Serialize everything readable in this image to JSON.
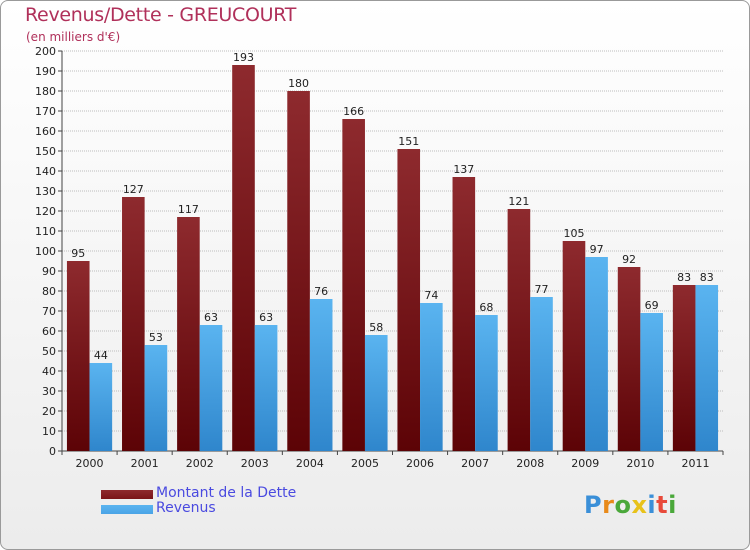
{
  "header": {
    "title": "Revenus/Dette - GREUCOURT",
    "subtitle": "(en milliers d'€)"
  },
  "legend": {
    "debt_label": "Montant de la Dette",
    "revenue_label": "Revenus"
  },
  "logo": {
    "letters": [
      "P",
      "r",
      "o",
      "x",
      "i",
      "t",
      "i"
    ],
    "colors": [
      "#3a8fd8",
      "#e88a1a",
      "#4aa83a",
      "#e8c21a",
      "#3a8fd8",
      "#e84a3a",
      "#4aa83a"
    ]
  },
  "colors": {
    "debt": "#7a1418",
    "revenue": "#4aa3e6",
    "grid": "#bdbdbd"
  },
  "chart_data": {
    "type": "bar",
    "title": "Revenus/Dette - GREUCOURT",
    "ylabel": "(en milliers d'€)",
    "xlabel": "",
    "categories": [
      "2000",
      "2001",
      "2002",
      "2003",
      "2004",
      "2005",
      "2006",
      "2007",
      "2008",
      "2009",
      "2010",
      "2011"
    ],
    "series": [
      {
        "name": "Montant de la Dette",
        "values": [
          95,
          127,
          117,
          193,
          180,
          166,
          151,
          137,
          121,
          105,
          92,
          83
        ]
      },
      {
        "name": "Revenus",
        "values": [
          44,
          53,
          63,
          63,
          76,
          58,
          74,
          68,
          77,
          97,
          69,
          83
        ]
      }
    ],
    "ylim": [
      0,
      200
    ],
    "ytick_step": 10,
    "grid": true,
    "legend_position": "bottom-left"
  }
}
